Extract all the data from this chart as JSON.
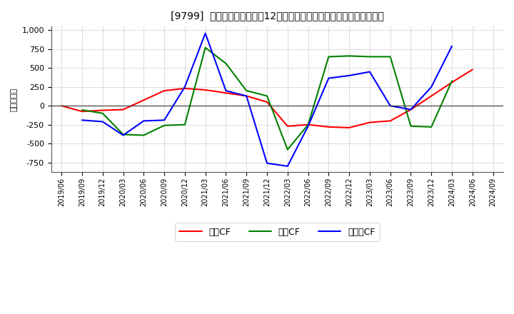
{
  "title": "[9799]  キャッシュフローの12か月移動合計の対前年同期増減額の推移",
  "ylabel": "（百万円）",
  "background_color": "#ffffff",
  "plot_bg_color": "#ffffff",
  "grid_color": "#999999",
  "ylim": [
    -875,
    1050
  ],
  "yticks": [
    -750,
    -500,
    -250,
    0,
    250,
    500,
    750,
    1000
  ],
  "x_labels": [
    "2019/06",
    "2019/09",
    "2019/12",
    "2020/03",
    "2020/06",
    "2020/09",
    "2020/12",
    "2021/03",
    "2021/06",
    "2021/09",
    "2021/12",
    "2022/03",
    "2022/06",
    "2022/09",
    "2022/12",
    "2023/03",
    "2023/06",
    "2023/09",
    "2023/12",
    "2024/03",
    "2024/06",
    "2024/09"
  ],
  "eigyo_cf": [
    0,
    -75,
    -60,
    -50,
    75,
    200,
    230,
    210,
    170,
    130,
    50,
    -270,
    -250,
    -280,
    -290,
    -220,
    -200,
    -50,
    130,
    310,
    480,
    null
  ],
  "toshi_cf": [
    null,
    -55,
    -100,
    -380,
    -390,
    -260,
    -250,
    770,
    560,
    200,
    130,
    -580,
    -250,
    650,
    660,
    650,
    650,
    -270,
    -280,
    330,
    null,
    null
  ],
  "free_cf": [
    null,
    -190,
    -210,
    -390,
    -200,
    -190,
    250,
    960,
    200,
    130,
    -760,
    -800,
    -270,
    365,
    400,
    450,
    0,
    -50,
    250,
    790,
    null,
    null
  ],
  "eigyo_color": "#ff0000",
  "toshi_color": "#008000",
  "free_color": "#0000ff",
  "eigyo_label": "営業CF",
  "toshi_label": "投資CF",
  "free_label": "フリーCF"
}
